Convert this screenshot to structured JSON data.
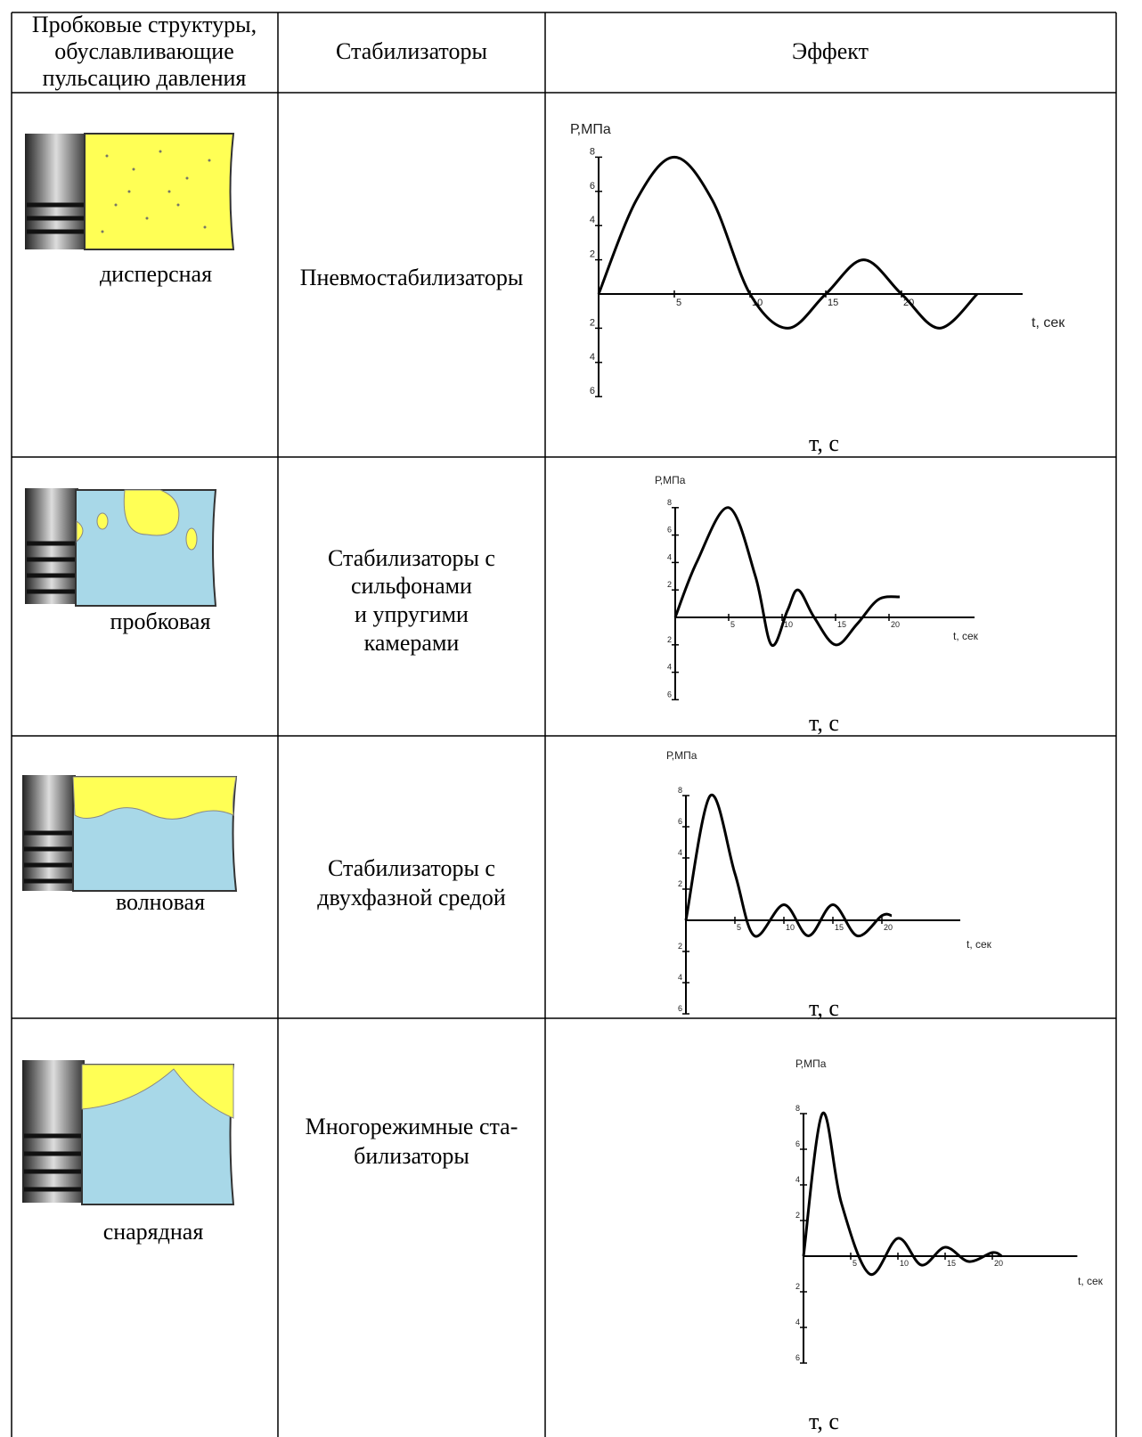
{
  "header": {
    "columns": [
      [
        "Пробковые структуры,",
        "обуславливающие",
        "пульсацию давления"
      ],
      [
        "Стабилизаторы"
      ],
      [
        "Эффект"
      ]
    ]
  },
  "table": {
    "rows": [
      {
        "structure": "дисперсная",
        "stabilizer": [
          "Пневмостабилизаторы"
        ],
        "effect": {
          "type": "line",
          "y_label": "Р,МПа",
          "x_label": "t, сек",
          "caption": "т, с",
          "x": [
            0,
            2.5,
            5,
            7.5,
            10,
            12.5,
            15,
            17.5,
            20,
            22.5,
            25
          ],
          "y": [
            0,
            5.5,
            8,
            5.5,
            0,
            -2,
            0,
            2,
            0,
            -2,
            0
          ],
          "xlim": [
            0,
            28
          ],
          "ylim": [
            -6,
            8
          ],
          "xticks": [
            5,
            10,
            15,
            20
          ],
          "yticks": [
            8,
            6,
            4,
            2,
            {
              "value": -2,
              "label": "2"
            },
            {
              "value": -4,
              "label": "4"
            },
            {
              "value": -6,
              "label": "6"
            }
          ]
        }
      },
      {
        "structure": "пробковая",
        "stabilizer": [
          "Стабилизаторы с",
          "сильфонами",
          "и упругими",
          "камерами"
        ],
        "effect": {
          "type": "line",
          "y_label": "Р,МПа",
          "x_label": "t, сек",
          "caption": "т, с",
          "x": [
            0,
            2,
            5,
            7.5,
            9,
            10.5,
            11.5,
            13,
            15,
            17,
            19,
            21
          ],
          "y": [
            0,
            4,
            8,
            3,
            -2,
            0.5,
            2,
            0,
            -2,
            -0.5,
            1.3,
            1.5
          ],
          "xlim": [
            0,
            28
          ],
          "ylim": [
            -6,
            8
          ],
          "xticks": [
            5,
            10,
            15,
            20
          ],
          "yticks": [
            8,
            6,
            4,
            2,
            {
              "value": -2,
              "label": "2"
            },
            {
              "value": -4,
              "label": "4"
            },
            {
              "value": -6,
              "label": "6"
            }
          ]
        }
      },
      {
        "structure": "волновая",
        "stabilizer": [
          "Стабилизаторы с",
          "двухфазной средой"
        ],
        "effect": {
          "type": "line",
          "y_label": "Р,МПа",
          "x_label": "t, сек",
          "caption": "т, с",
          "x": [
            0,
            2.5,
            5,
            7,
            10,
            12.5,
            15,
            17.5,
            20,
            21
          ],
          "y": [
            0,
            8,
            3,
            -1,
            1,
            -1,
            1,
            -1,
            0.3,
            0.3
          ],
          "xlim": [
            0,
            28
          ],
          "ylim": [
            -6,
            8
          ],
          "xticks": [
            5,
            10,
            15,
            20
          ],
          "yticks": [
            8,
            6,
            4,
            2,
            {
              "value": -2,
              "label": "2"
            },
            {
              "value": -4,
              "label": "4"
            },
            {
              "value": -6,
              "label": "6"
            }
          ]
        }
      },
      {
        "structure": "снарядная",
        "stabilizer": [
          "Многорежимные ста-",
          "билизаторы"
        ],
        "effect": {
          "type": "line",
          "y_label": "Р,МПа",
          "x_label": "t, сек",
          "caption": "т, с",
          "x": [
            0,
            2,
            4,
            7,
            10,
            12.5,
            15,
            17.5,
            20,
            21
          ],
          "y": [
            0,
            8,
            3,
            -1,
            1,
            -0.5,
            0.5,
            -0.3,
            0.2,
            0
          ],
          "xlim": [
            0,
            29
          ],
          "ylim": [
            -6,
            8
          ],
          "xticks": [
            5,
            10,
            15,
            20
          ],
          "yticks": [
            8,
            6,
            4,
            2,
            {
              "value": -2,
              "label": "2"
            },
            {
              "value": -4,
              "label": "4"
            },
            {
              "value": -6,
              "label": "6"
            }
          ]
        }
      }
    ]
  }
}
